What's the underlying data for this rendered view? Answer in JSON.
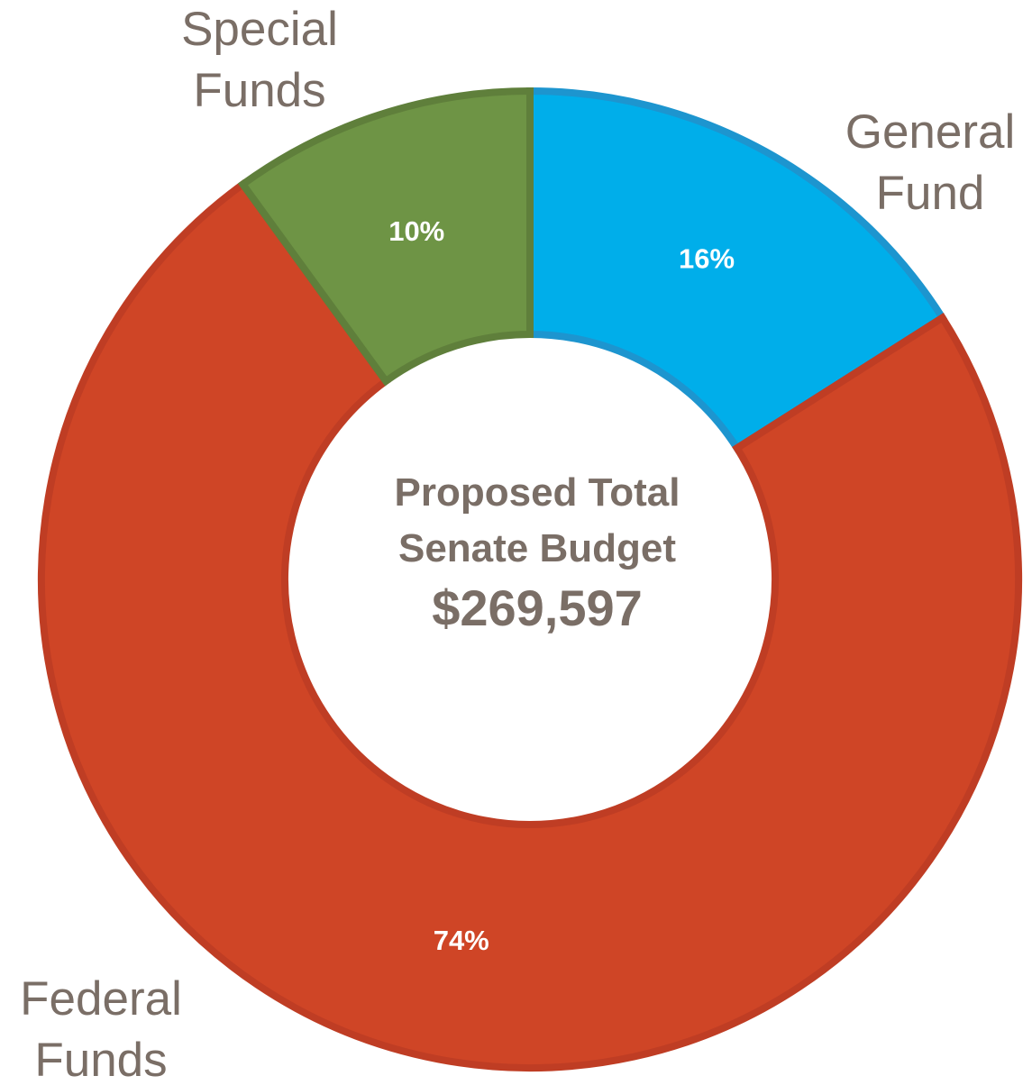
{
  "chart_data": {
    "type": "pie",
    "style": "donut",
    "categories": [
      "General Fund",
      "Federal Funds",
      "Special Funds"
    ],
    "values": [
      16,
      74,
      10
    ],
    "value_labels": [
      "16%",
      "74%",
      "10%"
    ],
    "colors": [
      "#00aeea",
      "#cf4526",
      "#6e9445"
    ],
    "edge_colors": [
      "#1d95cf",
      "#bf3d24",
      "#5f7f3b"
    ],
    "start_angle": "12 o'clock",
    "direction": "clockwise",
    "center_text": {
      "line1": "Proposed Total",
      "line2": "Senate Budget",
      "amount": "$269,597"
    },
    "category_label_lines": [
      [
        "General",
        "Fund"
      ],
      [
        "Federal",
        "Funds"
      ],
      [
        "Special",
        "Funds"
      ]
    ],
    "legend": "none"
  }
}
